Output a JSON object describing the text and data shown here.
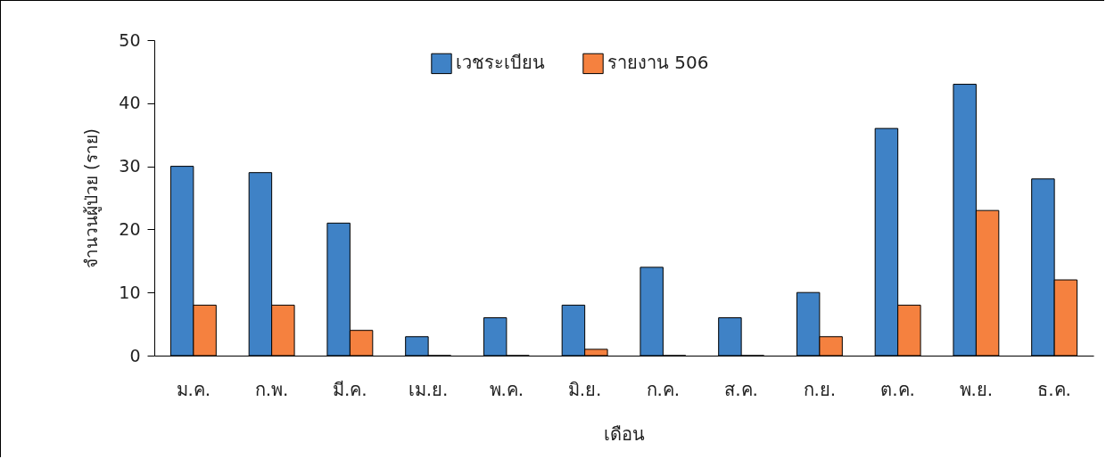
{
  "chart_data": {
    "type": "bar",
    "xlabel": "เดือน",
    "ylabel": "จำนวนผู้ป่วย (ราย)",
    "categories": [
      "ม.ค.",
      "ก.พ.",
      "มี.ค.",
      "เม.ย.",
      "พ.ค.",
      "มิ.ย.",
      "ก.ค.",
      "ส.ค.",
      "ก.ย.",
      "ต.ค.",
      "พ.ย.",
      "ธ.ค."
    ],
    "series": [
      {
        "name": "เวชระเบียน",
        "color": "#3f82c6",
        "values": [
          30,
          29,
          21,
          3,
          6,
          8,
          14,
          6,
          10,
          36,
          43,
          28
        ]
      },
      {
        "name": "รายงาน 506",
        "color": "#f5813f",
        "values": [
          8,
          8,
          4,
          0,
          0,
          1,
          0,
          0,
          3,
          8,
          23,
          12
        ]
      }
    ],
    "ylim": [
      0,
      50
    ],
    "yticks": [
      0,
      10,
      20,
      30,
      40,
      50
    ],
    "grid": false,
    "legend": "top"
  }
}
